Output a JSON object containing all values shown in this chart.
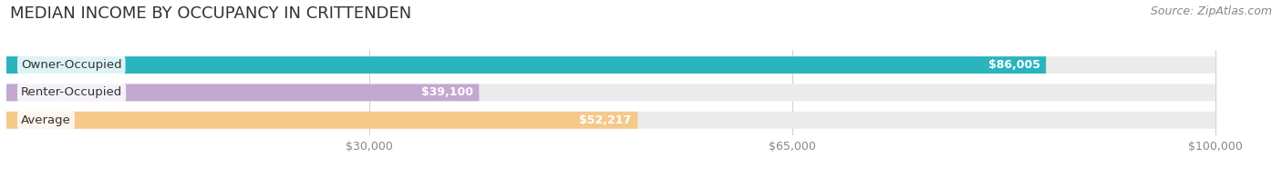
{
  "title": "MEDIAN INCOME BY OCCUPANCY IN CRITTENDEN",
  "source": "Source: ZipAtlas.com",
  "categories": [
    "Owner-Occupied",
    "Renter-Occupied",
    "Average"
  ],
  "values": [
    86005,
    39100,
    52217
  ],
  "labels": [
    "$86,005",
    "$39,100",
    "$52,217"
  ],
  "bar_colors": [
    "#2ab5be",
    "#c3a8d1",
    "#f5c98a"
  ],
  "bar_bg_color": "#ebebeb",
  "xlim": [
    0,
    105000
  ],
  "xaxis_max": 100000,
  "xticks": [
    30000,
    65000,
    100000
  ],
  "xticklabels": [
    "$30,000",
    "$65,000",
    "$100,000"
  ],
  "title_fontsize": 13,
  "source_fontsize": 9,
  "label_fontsize": 9,
  "cat_fontsize": 9.5,
  "bar_height": 0.62,
  "background_color": "#ffffff",
  "grid_color": "#d0d0d0"
}
